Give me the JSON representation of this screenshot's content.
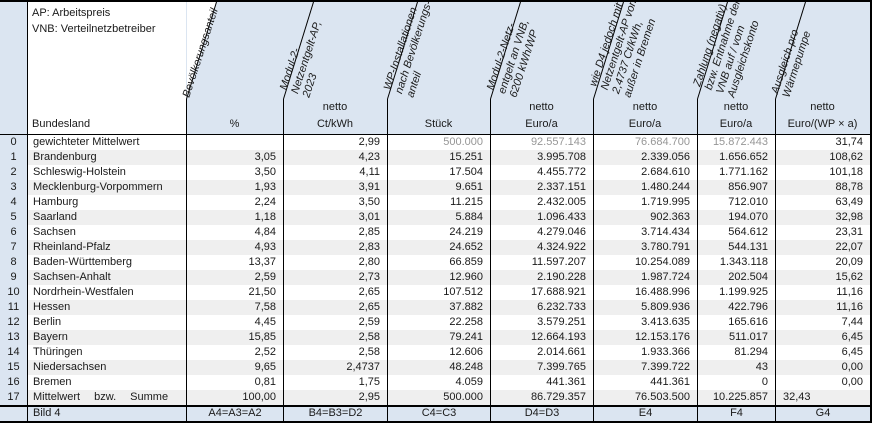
{
  "legend": {
    "line1": "AP: Arbeitspreis",
    "line2": "VNB: Verteilnetzbetreiber"
  },
  "footer": {
    "caption": "Bild 4",
    "cells": [
      "A4=A3=A2",
      "B4=B3=D2",
      "C4=C3",
      "D4=D3",
      "E4",
      "F4",
      "G4"
    ]
  },
  "colors": {
    "header_bg": "#dbe5f1",
    "row_stripe": "#efefef",
    "muted_value_text": "#969696",
    "grid": "#000000"
  },
  "chart_data": {
    "type": "table",
    "corner_label": "Bundesland",
    "columns": [
      {
        "label": "Bevölkerungsanteil",
        "netto": "",
        "unit": "%"
      },
      {
        "label": "Modul-2-\nNetzentgelt-AP,\n2023",
        "netto": "netto",
        "unit": "Ct/kWh"
      },
      {
        "label": "WP-Installationen\nnach Bevölkerungs-\nanteil",
        "netto": "",
        "unit": "Stück"
      },
      {
        "label": "Modul-2-Netz-\nentgelt an VNB,\n6200 kWh/WP",
        "netto": "netto",
        "unit": "Euro/a"
      },
      {
        "label": "wie D4 jedoch mit\nNetzentgelt-AP von\n2,4737 Ct/kWh,\naußer in Bremen",
        "netto": "netto",
        "unit": "Euro/a"
      },
      {
        "label": "Zahlung (negativ)\nbzw. Entnahme der\nVNB auf / vom\nAusgleichskonto",
        "netto": "netto",
        "unit": "Euro/a"
      },
      {
        "label": "Ausgleich pro\nWärmepumpe",
        "netto": "netto",
        "unit": "Euro/(WP × a)"
      }
    ],
    "rows": [
      {
        "idx": "0",
        "name": "gewichteter Mittelwert",
        "values": [
          "",
          "2,99",
          "500.000",
          "92.557.143",
          "76.684.700",
          "15.872.443",
          "31,74"
        ],
        "muted_value_cols": [
          2,
          3,
          4,
          5
        ]
      },
      {
        "idx": "1",
        "name": "Brandenburg",
        "values": [
          "3,05",
          "4,23",
          "15.251",
          "3.995.708",
          "2.339.056",
          "1.656.652",
          "108,62"
        ]
      },
      {
        "idx": "2",
        "name": "Schleswig-Holstein",
        "values": [
          "3,50",
          "4,11",
          "17.504",
          "4.455.772",
          "2.684.610",
          "1.771.162",
          "101,18"
        ]
      },
      {
        "idx": "3",
        "name": "Mecklenburg-Vorpommern",
        "values": [
          "1,93",
          "3,91",
          "9.651",
          "2.337.151",
          "1.480.244",
          "856.907",
          "88,78"
        ]
      },
      {
        "idx": "4",
        "name": "Hamburg",
        "values": [
          "2,24",
          "3,50",
          "11.215",
          "2.432.005",
          "1.719.995",
          "712.010",
          "63,49"
        ]
      },
      {
        "idx": "5",
        "name": "Saarland",
        "values": [
          "1,18",
          "3,01",
          "5.884",
          "1.096.433",
          "902.363",
          "194.070",
          "32,98"
        ]
      },
      {
        "idx": "6",
        "name": "Sachsen",
        "values": [
          "4,84",
          "2,85",
          "24.219",
          "4.279.046",
          "3.714.434",
          "564.612",
          "23,31"
        ]
      },
      {
        "idx": "7",
        "name": "Rheinland-Pfalz",
        "values": [
          "4,93",
          "2,83",
          "24.652",
          "4.324.922",
          "3.780.791",
          "544.131",
          "22,07"
        ]
      },
      {
        "idx": "8",
        "name": "Baden-Württemberg",
        "values": [
          "13,37",
          "2,80",
          "66.859",
          "11.597.207",
          "10.254.089",
          "1.343.118",
          "20,09"
        ]
      },
      {
        "idx": "9",
        "name": "Sachsen-Anhalt",
        "values": [
          "2,59",
          "2,73",
          "12.960",
          "2.190.228",
          "1.987.724",
          "202.504",
          "15,62"
        ]
      },
      {
        "idx": "10",
        "name": "Nordrhein-Westfalen",
        "values": [
          "21,50",
          "2,65",
          "107.512",
          "17.688.921",
          "16.488.996",
          "1.199.925",
          "11,16"
        ]
      },
      {
        "idx": "11",
        "name": "Hessen",
        "values": [
          "7,58",
          "2,65",
          "37.882",
          "6.232.733",
          "5.809.936",
          "422.796",
          "11,16"
        ]
      },
      {
        "idx": "12",
        "name": "Berlin",
        "values": [
          "4,45",
          "2,59",
          "22.258",
          "3.579.251",
          "3.413.635",
          "165.616",
          "7,44"
        ]
      },
      {
        "idx": "13",
        "name": "Bayern",
        "values": [
          "15,85",
          "2,58",
          "79.241",
          "12.664.193",
          "12.153.176",
          "511.017",
          "6,45"
        ]
      },
      {
        "idx": "14",
        "name": "Thüringen",
        "values": [
          "2,52",
          "2,58",
          "12.606",
          "2.014.661",
          "1.933.366",
          "81.294",
          "6,45"
        ]
      },
      {
        "idx": "15",
        "name": "Niedersachsen",
        "values": [
          "9,65",
          "2,4737",
          "48.248",
          "7.399.765",
          "7.399.722",
          "43",
          "0,00"
        ]
      },
      {
        "idx": "16",
        "name": "Bremen",
        "values": [
          "0,81",
          "1,75",
          "4.059",
          "441.361",
          "441.361",
          "0",
          "0,00"
        ]
      },
      {
        "idx": "17",
        "name": "Mittelwert bzw. Summe",
        "values": [
          "100,00",
          "2,95",
          "500.000",
          "86.729.357",
          "76.503.500",
          "10.225.857",
          "32,43"
        ],
        "name_justified": true,
        "last_value_left_aligned": true
      }
    ]
  }
}
